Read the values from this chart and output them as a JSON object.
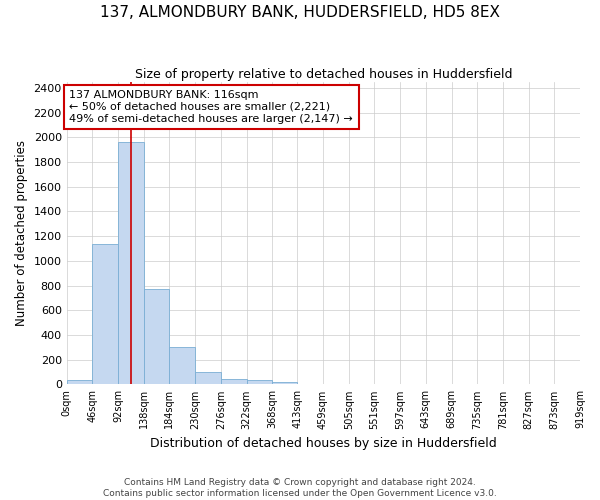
{
  "title": "137, ALMONDBURY BANK, HUDDERSFIELD, HD5 8EX",
  "subtitle": "Size of property relative to detached houses in Huddersfield",
  "xlabel": "Distribution of detached houses by size in Huddersfield",
  "ylabel": "Number of detached properties",
  "footer_line1": "Contains HM Land Registry data © Crown copyright and database right 2024.",
  "footer_line2": "Contains public sector information licensed under the Open Government Licence v3.0.",
  "bar_edges": [
    0,
    46,
    92,
    138,
    184,
    230,
    276,
    322,
    368,
    413,
    459,
    505,
    551,
    597,
    643,
    689,
    735,
    781,
    827,
    873,
    919
  ],
  "bar_heights": [
    35,
    1135,
    1960,
    770,
    300,
    100,
    45,
    35,
    20,
    0,
    0,
    0,
    0,
    0,
    0,
    0,
    0,
    0,
    0,
    0
  ],
  "bar_color": "#c5d8f0",
  "bar_edgecolor": "#7aaed4",
  "vline_x": 116,
  "vline_color": "#cc0000",
  "annotation_text": "137 ALMONDBURY BANK: 116sqm\n← 50% of detached houses are smaller (2,221)\n49% of semi-detached houses are larger (2,147) →",
  "annotation_box_color": "#cc0000",
  "ylim": [
    0,
    2450
  ],
  "yticks": [
    0,
    200,
    400,
    600,
    800,
    1000,
    1200,
    1400,
    1600,
    1800,
    2000,
    2200,
    2400
  ],
  "xtick_labels": [
    "0sqm",
    "46sqm",
    "92sqm",
    "138sqm",
    "184sqm",
    "230sqm",
    "276sqm",
    "322sqm",
    "368sqm",
    "413sqm",
    "459sqm",
    "505sqm",
    "551sqm",
    "597sqm",
    "643sqm",
    "689sqm",
    "735sqm",
    "781sqm",
    "827sqm",
    "873sqm",
    "919sqm"
  ],
  "grid_color": "#cccccc",
  "bg_color": "#ffffff",
  "plot_bg_color": "#ffffff"
}
